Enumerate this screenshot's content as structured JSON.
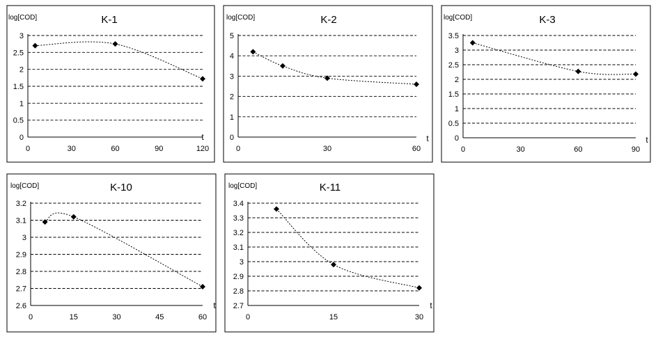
{
  "chart_data": [
    {
      "type": "line",
      "title": "K-1",
      "ylabel": "log[COD]",
      "xlabel": "t",
      "x": [
        5,
        60,
        120
      ],
      "y": [
        2.7,
        2.75,
        1.72
      ],
      "xlim": [
        0,
        120
      ],
      "xticks": [
        0,
        30,
        60,
        90,
        120
      ],
      "xtick_labels": [
        "0",
        "30",
        "60",
        "90",
        "120"
      ],
      "ylim": [
        0,
        3
      ],
      "yticks": [
        0,
        0.5,
        1,
        1.5,
        2,
        2.5,
        3
      ],
      "ytick_labels": [
        "0",
        "0.5",
        "1",
        "1.5",
        "2",
        "2.5",
        "3"
      ],
      "grid": true
    },
    {
      "type": "line",
      "title": "K-2",
      "ylabel": "log[COD]",
      "xlabel": "t",
      "x": [
        5,
        15,
        30,
        60
      ],
      "y": [
        4.2,
        3.5,
        2.9,
        2.6
      ],
      "xlim": [
        0,
        60
      ],
      "xticks": [
        0,
        30,
        60
      ],
      "xtick_labels": [
        "0",
        "30",
        "60"
      ],
      "ylim": [
        0,
        5
      ],
      "yticks": [
        0,
        1,
        2,
        3,
        4,
        5
      ],
      "ytick_labels": [
        "0",
        "1",
        "2",
        "3",
        "4",
        "5"
      ],
      "grid": true
    },
    {
      "type": "line",
      "title": "K-3",
      "ylabel": "log[COD]",
      "xlabel": "t",
      "x": [
        5,
        60,
        90
      ],
      "y": [
        3.25,
        2.27,
        2.18
      ],
      "xlim": [
        0,
        90
      ],
      "xticks": [
        0,
        30,
        60,
        90
      ],
      "xtick_labels": [
        "0",
        "30",
        "60",
        "90"
      ],
      "ylim": [
        0,
        3.5
      ],
      "yticks": [
        0,
        0.5,
        1,
        1.5,
        2,
        2.5,
        3,
        3.5
      ],
      "ytick_labels": [
        "0",
        "0.5",
        "1",
        "1.5",
        "2",
        "2.5",
        "3",
        "3.5"
      ],
      "grid": true
    },
    {
      "type": "line",
      "title": "K-10",
      "ylabel": "log[COD]",
      "xlabel": "t",
      "x": [
        5,
        15,
        60
      ],
      "y": [
        3.09,
        3.12,
        2.71
      ],
      "xlim": [
        0,
        60
      ],
      "xticks": [
        0,
        15,
        30,
        45,
        60
      ],
      "xtick_labels": [
        "0",
        "15",
        "30",
        "45",
        "60"
      ],
      "ylim": [
        2.6,
        3.2
      ],
      "yticks": [
        2.6,
        2.7,
        2.8,
        2.9,
        3.0,
        3.1,
        3.2
      ],
      "ytick_labels": [
        "2.6",
        "2.7",
        "2.8",
        "2.9",
        "3",
        "3.1",
        "3.2"
      ],
      "grid": true
    },
    {
      "type": "line",
      "title": "K-11",
      "ylabel": "log[COD]",
      "xlabel": "t",
      "x": [
        5,
        15,
        30
      ],
      "y": [
        3.36,
        2.98,
        2.82
      ],
      "xlim": [
        0,
        30
      ],
      "xticks": [
        0,
        15,
        30
      ],
      "xtick_labels": [
        "0",
        "15",
        "30"
      ],
      "ylim": [
        2.7,
        3.4
      ],
      "yticks": [
        2.7,
        2.8,
        2.9,
        3.0,
        3.1,
        3.2,
        3.3,
        3.4
      ],
      "ytick_labels": [
        "2.7",
        "2.8",
        "2.9",
        "3",
        "3.1",
        "3.2",
        "3.3",
        "3.4"
      ],
      "grid": true
    }
  ]
}
